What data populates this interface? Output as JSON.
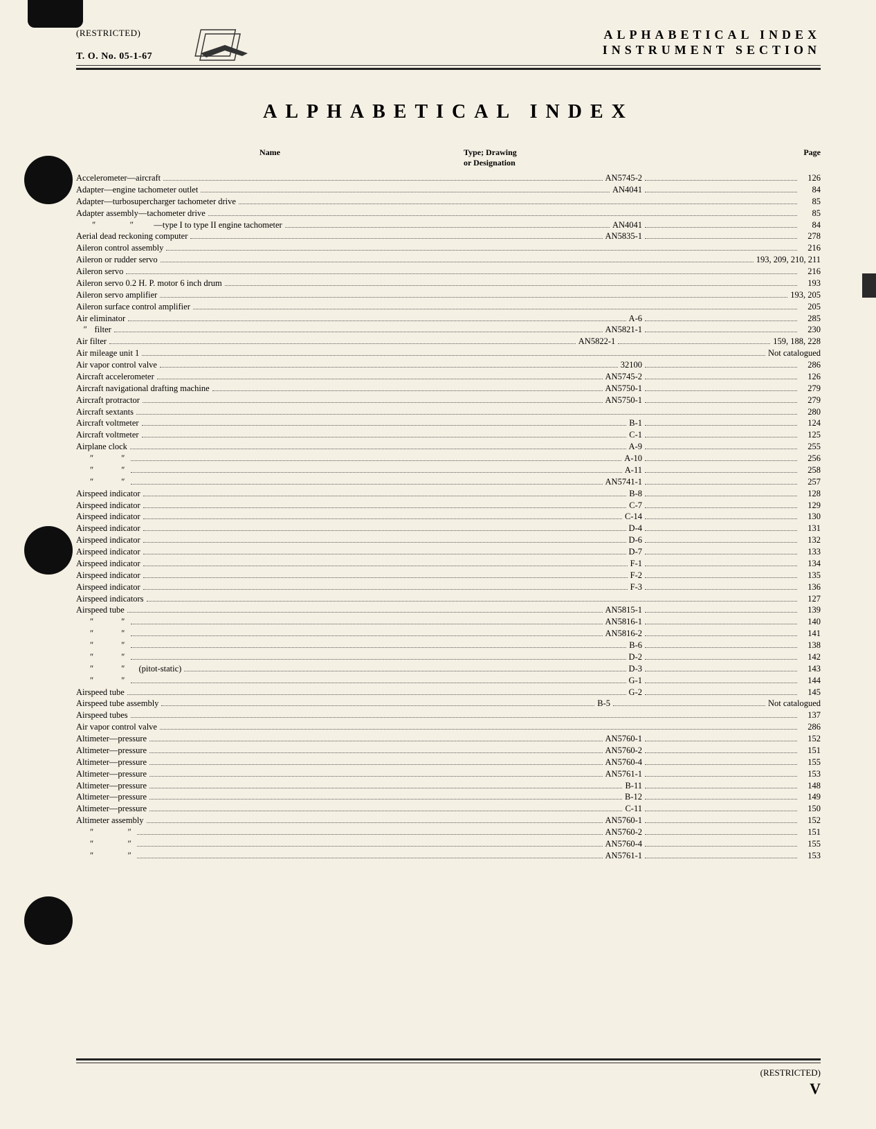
{
  "header": {
    "restricted": "(RESTRICTED)",
    "tono": "T. O. No. 05-1-67",
    "right1": "ALPHABETICAL INDEX",
    "right2": "INSTRUMENT SECTION"
  },
  "title": "ALPHABETICAL   INDEX",
  "colHeaders": {
    "name": "Name",
    "type1": "Type; Drawing",
    "type2": "or Designation",
    "page": "Page"
  },
  "rows": [
    {
      "name": "Accelerometer—aircraft",
      "type": "AN5745-2",
      "page": "126"
    },
    {
      "name": "Adapter—engine tachometer outlet",
      "type": "AN4041",
      "page": "84"
    },
    {
      "name": "Adapter—turbosupercharger tachometer drive",
      "type": "",
      "page": "85"
    },
    {
      "name": "Adapter assembly—tachometer drive",
      "type": "",
      "page": "85"
    },
    {
      "name": "      \"             \"        —type I to type II engine tachometer",
      "type": "AN4041",
      "page": "84"
    },
    {
      "name": "Aerial dead reckoning computer",
      "type": "AN5835-1",
      "page": "278"
    },
    {
      "name": "Aileron control assembly",
      "type": "",
      "page": "216"
    },
    {
      "name": "Aileron or rudder servo",
      "type": "",
      "page": "193, 209, 210, 211"
    },
    {
      "name": "Aileron servo",
      "type": "",
      "page": "216"
    },
    {
      "name": "Aileron servo 0.2 H. P. motor 6 inch drum",
      "type": "",
      "page": "193"
    },
    {
      "name": "Aileron servo amplifier",
      "type": "",
      "page": "193, 205"
    },
    {
      "name": "Aileron surface control amplifier",
      "type": "",
      "page": "205"
    },
    {
      "name": "Air eliminator",
      "type": "A-6",
      "page": "285"
    },
    {
      "name": "  \"  filter",
      "type": "AN5821-1",
      "page": "230"
    },
    {
      "name": "Air filter",
      "type": "AN5822-1",
      "page": "159, 188, 228"
    },
    {
      "name": "Air mileage unit 1",
      "type": "",
      "page": "Not catalogued"
    },
    {
      "name": "Air vapor control valve",
      "type": "32100",
      "page": "286"
    },
    {
      "name": "Aircraft accelerometer",
      "type": "AN5745-2",
      "page": "126"
    },
    {
      "name": "Aircraft navigational drafting machine",
      "type": "AN5750-1",
      "page": "279"
    },
    {
      "name": "Aircraft protractor",
      "type": "AN5750-1",
      "page": "279"
    },
    {
      "name": "Aircraft sextants",
      "type": "",
      "page": "280"
    },
    {
      "name": "Aircraft voltmeter",
      "type": "B-1",
      "page": "124"
    },
    {
      "name": "Aircraft voltmeter",
      "type": "C-1",
      "page": "125"
    },
    {
      "name": "Airplane clock",
      "type": "A-9",
      "page": "255"
    },
    {
      "name": "     \"          \"",
      "type": "A-10",
      "page": "256"
    },
    {
      "name": "     \"          \"",
      "type": "A-11",
      "page": "258"
    },
    {
      "name": "     \"          \"",
      "type": "AN5741-1",
      "page": "257"
    },
    {
      "name": "Airspeed indicator",
      "type": "B-8",
      "page": "128"
    },
    {
      "name": "Airspeed indicator",
      "type": "C-7",
      "page": "129"
    },
    {
      "name": "Airspeed indicator",
      "type": "C-14",
      "page": "130"
    },
    {
      "name": "Airspeed indicator",
      "type": "D-4",
      "page": "131"
    },
    {
      "name": "Airspeed indicator",
      "type": "D-6",
      "page": "132"
    },
    {
      "name": "Airspeed indicator",
      "type": "D-7",
      "page": "133"
    },
    {
      "name": "Airspeed indicator",
      "type": "F-1",
      "page": "134"
    },
    {
      "name": "Airspeed indicator",
      "type": "F-2",
      "page": "135"
    },
    {
      "name": "Airspeed indicator",
      "type": "F-3",
      "page": "136"
    },
    {
      "name": "Airspeed indicators",
      "type": "",
      "page": "127"
    },
    {
      "name": "Airspeed tube",
      "type": "AN5815-1",
      "page": "139"
    },
    {
      "name": "     \"          \"",
      "type": "AN5816-1",
      "page": "140"
    },
    {
      "name": "     \"          \"",
      "type": "AN5816-2",
      "page": "141"
    },
    {
      "name": "     \"          \"",
      "type": "B-6",
      "page": "138"
    },
    {
      "name": "     \"          \"",
      "type": "D-2",
      "page": "142"
    },
    {
      "name": "     \"          \"     (pitot-static)",
      "type": "D-3",
      "page": "143"
    },
    {
      "name": "     \"          \"",
      "type": "G-1",
      "page": "144"
    },
    {
      "name": "Airspeed tube",
      "type": "G-2",
      "page": "145"
    },
    {
      "name": "Airspeed tube assembly",
      "type": "B-5",
      "page": "Not catalogued"
    },
    {
      "name": "Airspeed tubes",
      "type": "",
      "page": "137"
    },
    {
      "name": "Air vapor control valve",
      "type": "",
      "page": "286"
    },
    {
      "name": "Altimeter—pressure",
      "type": "AN5760-1",
      "page": "152"
    },
    {
      "name": "Altimeter—pressure",
      "type": "AN5760-2",
      "page": "151"
    },
    {
      "name": "Altimeter—pressure",
      "type": "AN5760-4",
      "page": "155"
    },
    {
      "name": "Altimeter—pressure",
      "type": "AN5761-1",
      "page": "153"
    },
    {
      "name": "Altimeter—pressure",
      "type": "B-11",
      "page": "148"
    },
    {
      "name": "Altimeter—pressure",
      "type": "B-12",
      "page": "149"
    },
    {
      "name": "Altimeter—pressure",
      "type": "C-11",
      "page": "150"
    },
    {
      "name": "Altimeter assembly",
      "type": "AN5760-1",
      "page": "152"
    },
    {
      "name": "     \"             \"",
      "type": "AN5760-2",
      "page": "151"
    },
    {
      "name": "     \"             \"",
      "type": "AN5760-4",
      "page": "155"
    },
    {
      "name": "     \"             \"",
      "type": "AN5761-1",
      "page": "153"
    }
  ],
  "footer": {
    "restricted": "(RESTRICTED)",
    "pageMark": "V"
  }
}
